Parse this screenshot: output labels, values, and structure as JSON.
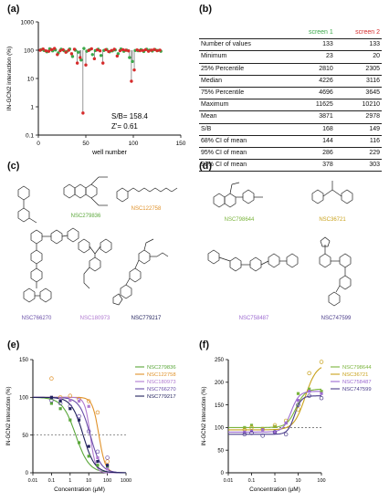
{
  "panels": {
    "a": {
      "label": "(a)"
    },
    "b": {
      "label": "(b)"
    },
    "c": {
      "label": "(c)"
    },
    "d": {
      "label": "(d)"
    },
    "e": {
      "label": "(e)"
    },
    "f": {
      "label": "(f)"
    }
  },
  "colors": {
    "screen1": "#3aa84a",
    "screen2": "#d62b2b",
    "NSC279836": "#5aa73a",
    "NSC122758": "#e0922a",
    "NSC180973": "#b07ad0",
    "NSC766270": "#6a4fa8",
    "NSC779217": "#23235e",
    "NSC798644": "#7ab43c",
    "NSC36721": "#c9a21c",
    "NSC758487": "#9c6ad0",
    "NSC747599": "#4a3c8a"
  },
  "panel_a": {
    "sb_text": "S/B= 158.4",
    "z_text": "Z'= 0.61"
  },
  "table": {
    "headers": [
      "",
      "screen 1",
      "screen 2"
    ],
    "rows": [
      [
        "Number of values",
        "133",
        "133"
      ],
      [
        "Minimum",
        "23",
        "20"
      ],
      [
        "25% Percentile",
        "2810",
        "2305"
      ],
      [
        "Median",
        "4226",
        "3116"
      ],
      [
        "75% Percentile",
        "4696",
        "3645"
      ],
      [
        "Maximum",
        "11625",
        "10210"
      ],
      [
        "Mean",
        "3871",
        "2978"
      ],
      [
        "S/B",
        "168",
        "149"
      ],
      [
        "68% CI of mean",
        "144",
        "116"
      ],
      [
        "95% CI of mean",
        "286",
        "229"
      ],
      [
        "99% CI of mean",
        "378",
        "303"
      ]
    ]
  },
  "compounds_c": [
    {
      "name": "NSC279836"
    },
    {
      "name": "NSC122758"
    },
    {
      "name": "NSC766270"
    },
    {
      "name": "NSC180973"
    },
    {
      "name": "NSC779217"
    }
  ],
  "compounds_d": [
    {
      "name": "NSC798644"
    },
    {
      "name": "NSC36721"
    },
    {
      "name": "NSC758487"
    },
    {
      "name": "NSC747599"
    }
  ],
  "chart_data": [
    {
      "type": "scatter",
      "panel": "a",
      "xlabel": "well number",
      "ylabel": "IN-GCN2 interaction (%)",
      "xlim": [
        0,
        150
      ],
      "ylim": [
        0.1,
        1000
      ],
      "yscale": "log",
      "x_ticks": [
        0,
        50,
        100,
        150
      ],
      "y_ticks": [
        0.1,
        1,
        10,
        100,
        1000
      ],
      "grid": false,
      "series": [
        {
          "name": "screen 1",
          "points": [
            [
              3,
              105
            ],
            [
              6,
              98
            ],
            [
              9,
              88
            ],
            [
              12,
              112
            ],
            [
              15,
              95
            ],
            [
              18,
              102
            ],
            [
              21,
              80
            ],
            [
              24,
              108
            ],
            [
              27,
              96
            ],
            [
              30,
              90
            ],
            [
              33,
              110
            ],
            [
              36,
              60
            ],
            [
              39,
              100
            ],
            [
              42,
              85
            ],
            [
              45,
              45
            ],
            [
              48,
              115
            ],
            [
              51,
              92
            ],
            [
              54,
              104
            ],
            [
              57,
              70
            ],
            [
              60,
              97
            ],
            [
              63,
              108
            ],
            [
              66,
              65
            ],
            [
              69,
              98
            ],
            [
              72,
              106
            ],
            [
              75,
              88
            ],
            [
              78,
              95
            ],
            [
              81,
              102
            ],
            [
              84,
              75
            ],
            [
              87,
              110
            ],
            [
              90,
              92
            ],
            [
              93,
              100
            ],
            [
              96,
              55
            ],
            [
              99,
              40
            ],
            [
              102,
              98
            ],
            [
              105,
              96
            ],
            [
              108,
              104
            ],
            [
              111,
              90
            ],
            [
              114,
              108
            ],
            [
              117,
              100
            ],
            [
              120,
              94
            ],
            [
              123,
              105
            ],
            [
              126,
              98
            ],
            [
              129,
              92
            ]
          ]
        },
        {
          "name": "screen 2",
          "points": [
            [
              2,
              100
            ],
            [
              5,
              110
            ],
            [
              8,
              95
            ],
            [
              11,
              92
            ],
            [
              14,
              105
            ],
            [
              17,
              115
            ],
            [
              20,
              70
            ],
            [
              23,
              96
            ],
            [
              26,
              104
            ],
            [
              29,
              85
            ],
            [
              32,
              100
            ],
            [
              35,
              75
            ],
            [
              38,
              108
            ],
            [
              41,
              35
            ],
            [
              44,
              55
            ],
            [
              47,
              0.6
            ],
            [
              50,
              30
            ],
            [
              53,
              98
            ],
            [
              56,
              112
            ],
            [
              59,
              50
            ],
            [
              62,
              102
            ],
            [
              65,
              95
            ],
            [
              68,
              35
            ],
            [
              71,
              104
            ],
            [
              74,
              90
            ],
            [
              77,
              98
            ],
            [
              80,
              108
            ],
            [
              83,
              62
            ],
            [
              86,
              96
            ],
            [
              89,
              104
            ],
            [
              92,
              100
            ],
            [
              95,
              95
            ],
            [
              98,
              8
            ],
            [
              101,
              20
            ],
            [
              104,
              102
            ],
            [
              107,
              96
            ],
            [
              110,
              98
            ],
            [
              113,
              104
            ],
            [
              116,
              92
            ],
            [
              119,
              100
            ],
            [
              122,
              106
            ],
            [
              125,
              96
            ],
            [
              128,
              100
            ]
          ]
        }
      ]
    },
    {
      "type": "line",
      "panel": "e",
      "xlabel": "Concentration (µM)",
      "ylabel": "IN-GCN2 interaction (%)",
      "xscale": "log",
      "xlim": [
        0.01,
        1000
      ],
      "ylim": [
        0,
        150
      ],
      "x_ticks": [
        0.01,
        0.1,
        1,
        10,
        100,
        1000
      ],
      "y_ticks": [
        0,
        50,
        100,
        150
      ],
      "reference_line": 50,
      "legend": "right",
      "series": [
        {
          "name": "NSC279836",
          "ic50": 2,
          "hill": 1.2,
          "points": [
            [
              0.1,
              92
            ],
            [
              0.3,
              85
            ],
            [
              1,
              70
            ],
            [
              3,
              40
            ],
            [
              10,
              22
            ],
            [
              30,
              10
            ],
            [
              100,
              8
            ]
          ]
        },
        {
          "name": "NSC122758",
          "ic50": 35,
          "hill": 2.5,
          "points": [
            [
              0.1,
              125
            ],
            [
              0.3,
              100
            ],
            [
              1,
              102
            ],
            [
              3,
              98
            ],
            [
              10,
              95
            ],
            [
              30,
              80
            ],
            [
              100,
              15
            ]
          ]
        },
        {
          "name": "NSC180973",
          "ic50": 12,
          "hill": 3,
          "points": [
            [
              0.1,
              100
            ],
            [
              0.3,
              98
            ],
            [
              1,
              96
            ],
            [
              3,
              95
            ],
            [
              10,
              88
            ],
            [
              30,
              20
            ],
            [
              100,
              5
            ]
          ]
        },
        {
          "name": "NSC766270",
          "ic50": 12,
          "hill": 1.5,
          "points": [
            [
              0.1,
              96
            ],
            [
              0.3,
              92
            ],
            [
              1,
              88
            ],
            [
              3,
              75
            ],
            [
              10,
              55
            ],
            [
              30,
              28
            ],
            [
              100,
              20
            ]
          ]
        },
        {
          "name": "NSC779217",
          "ic50": 5,
          "hill": 1.4,
          "points": [
            [
              0.1,
              100
            ],
            [
              0.3,
              95
            ],
            [
              1,
              85
            ],
            [
              3,
              70
            ],
            [
              10,
              35
            ],
            [
              30,
              15
            ],
            [
              100,
              10
            ]
          ]
        }
      ]
    },
    {
      "type": "line",
      "panel": "f",
      "xlabel": "Concentration (µM)",
      "ylabel": "IN-GCN2 interaction (%)",
      "xscale": "log",
      "xlim": [
        0.01,
        100
      ],
      "ylim": [
        0,
        250
      ],
      "x_ticks": [
        0.01,
        0.1,
        1,
        10,
        100
      ],
      "y_ticks": [
        0,
        50,
        100,
        150,
        200,
        250
      ],
      "reference_line": 100,
      "legend": "right",
      "series": [
        {
          "name": "NSC798644",
          "bottom": 100,
          "top": 185,
          "ec50": 8,
          "hill": 2.2,
          "points": [
            [
              0.05,
              100
            ],
            [
              0.1,
              105
            ],
            [
              0.3,
              98
            ],
            [
              1,
              102
            ],
            [
              3,
              110
            ],
            [
              10,
              175
            ],
            [
              30,
              185
            ],
            [
              100,
              180
            ]
          ]
        },
        {
          "name": "NSC36721",
          "bottom": 95,
          "top": 240,
          "ec50": 20,
          "hill": 1.8,
          "points": [
            [
              0.05,
              95
            ],
            [
              0.1,
              100
            ],
            [
              0.3,
              96
            ],
            [
              1,
              105
            ],
            [
              3,
              115
            ],
            [
              10,
              140
            ],
            [
              30,
              220
            ],
            [
              100,
              245
            ]
          ]
        },
        {
          "name": "NSC758487",
          "bottom": 90,
          "top": 180,
          "ec50": 5,
          "hill": 2.5,
          "points": [
            [
              0.05,
              90
            ],
            [
              0.1,
              92
            ],
            [
              0.3,
              95
            ],
            [
              1,
              90
            ],
            [
              3,
              110
            ],
            [
              10,
              160
            ],
            [
              30,
              180
            ],
            [
              100,
              175
            ]
          ]
        },
        {
          "name": "NSC747599",
          "bottom": 85,
          "top": 170,
          "ec50": 7,
          "hill": 3,
          "points": [
            [
              0.05,
              85
            ],
            [
              0.1,
              88
            ],
            [
              0.3,
              82
            ],
            [
              1,
              90
            ],
            [
              3,
              85
            ],
            [
              10,
              150
            ],
            [
              30,
              170
            ],
            [
              100,
              165
            ]
          ]
        }
      ]
    }
  ]
}
